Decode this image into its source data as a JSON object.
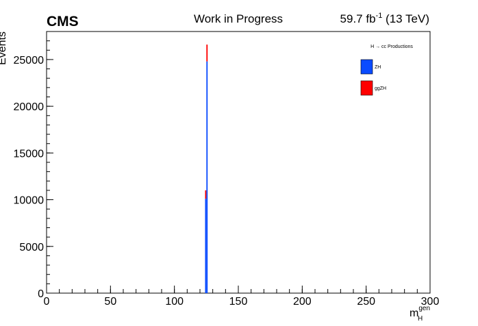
{
  "chart_data": {
    "type": "histogram",
    "title": "CMS",
    "subtitle": "Work in Progress",
    "lumi": "59.7 fb",
    "lumi_sup": "-1",
    "lumi_rest": " (13 TeV)",
    "y_label": "Events",
    "x_label": "m",
    "x_label_sup": "gen",
    "x_label_sub": "H",
    "legend_title": "H → cc Productions",
    "bins": [
      124,
      125,
      126
    ],
    "series": [
      {
        "name": "ZH",
        "color": "#0a4bff",
        "values": [
          10100,
          24800
        ]
      },
      {
        "name": "ggZH",
        "color": "#ff0000",
        "values": [
          900,
          1800
        ]
      }
    ],
    "xlim": [
      0,
      300
    ],
    "xticks": [
      0,
      50,
      100,
      150,
      200,
      250,
      300
    ],
    "ylim": [
      0,
      28000
    ],
    "yticks": [
      0,
      5000,
      10000,
      15000,
      20000,
      25000
    ],
    "stacked": true
  }
}
